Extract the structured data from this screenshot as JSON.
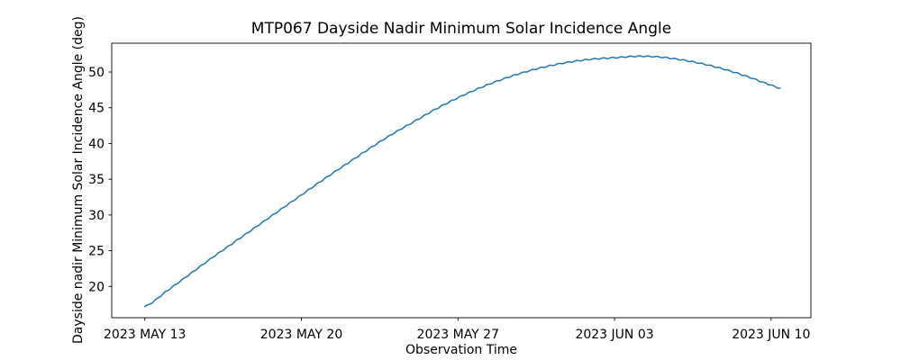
{
  "chart_data": {
    "type": "line",
    "title": "MTP067 Dayside Nadir Minimum Solar Incidence Angle",
    "xlabel": "Observation Time",
    "ylabel": "Dayside nadir Minimum Solar Incidence Angle (deg)",
    "line_color": "#1f77b4",
    "axis_color": "#000000",
    "background_color": "#ffffff",
    "grid": false,
    "x_axis_unit": "days_after_2023_may_13",
    "xlim_days": [
      -1.48,
      29.78
    ],
    "ylim": [
      15.63,
      54.03
    ],
    "x_ticks": [
      {
        "day": 0,
        "label": "2023 MAY 13"
      },
      {
        "day": 7,
        "label": "2023 MAY 20"
      },
      {
        "day": 14,
        "label": "2023 MAY 27"
      },
      {
        "day": 21,
        "label": "2023 JUN 03"
      },
      {
        "day": 28,
        "label": "2023 JUN 10"
      }
    ],
    "y_ticks": [
      20,
      25,
      30,
      35,
      40,
      45,
      50
    ],
    "series": [
      {
        "name": "dayside-nadir-min-solar-incidence-angle-deg",
        "points": [
          [
            0,
            17.2
          ],
          [
            1,
            19.4
          ],
          [
            2,
            21.7
          ],
          [
            3,
            24.0
          ],
          [
            4,
            26.2
          ],
          [
            5,
            28.4
          ],
          [
            6,
            30.6
          ],
          [
            7,
            32.8
          ],
          [
            8,
            35.0
          ],
          [
            9,
            37.1
          ],
          [
            10,
            39.2
          ],
          [
            11,
            41.2
          ],
          [
            12,
            43.0
          ],
          [
            13,
            44.8
          ],
          [
            14,
            46.4
          ],
          [
            15,
            47.8
          ],
          [
            16,
            49.0
          ],
          [
            17,
            50.0
          ],
          [
            18,
            50.8
          ],
          [
            19,
            51.4
          ],
          [
            20,
            51.8
          ],
          [
            21,
            52.0
          ],
          [
            22,
            52.2
          ],
          [
            23,
            52.1
          ],
          [
            24,
            51.7
          ],
          [
            25,
            51.1
          ],
          [
            26,
            50.3
          ],
          [
            27,
            49.3
          ],
          [
            28,
            48.2
          ],
          [
            28.4,
            47.75
          ]
        ]
      }
    ],
    "ripple": {
      "amplitude_deg": 0.07,
      "period_days": 0.4
    }
  }
}
